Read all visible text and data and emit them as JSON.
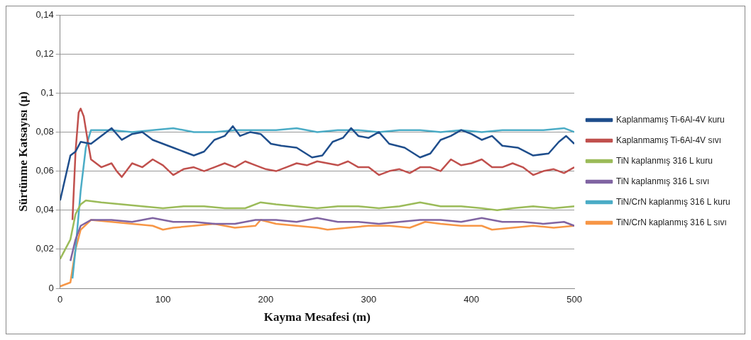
{
  "chart_data": {
    "type": "line",
    "xlabel": "Kayma Mesafesi (m)",
    "ylabel": "Sürtünme Katsayısı (µ)",
    "xlim": [
      0,
      500
    ],
    "xticks": [
      0,
      100,
      200,
      300,
      400,
      500
    ],
    "ylim": [
      0,
      0.14
    ],
    "yticks": [
      {
        "value": 0,
        "label": "0"
      },
      {
        "value": 0.02,
        "label": "0,02"
      },
      {
        "value": 0.04,
        "label": "0,04"
      },
      {
        "value": 0.06,
        "label": "0,06"
      },
      {
        "value": 0.08,
        "label": "0,08"
      },
      {
        "value": 0.1,
        "label": "0,1"
      },
      {
        "value": 0.12,
        "label": "0,12"
      },
      {
        "value": 0.14,
        "label": "0,14"
      }
    ],
    "grid": "y",
    "legend": "right",
    "marker": "none",
    "line_style": "solid",
    "series": [
      {
        "name": "Kaplanmamış Ti-6Al-4V kuru",
        "color": "#1f4e8c",
        "x": [
          0,
          10,
          15,
          20,
          30,
          40,
          50,
          60,
          70,
          80,
          90,
          100,
          110,
          120,
          130,
          140,
          150,
          160,
          168,
          175,
          185,
          195,
          205,
          215,
          230,
          245,
          255,
          265,
          275,
          283,
          290,
          300,
          310,
          320,
          335,
          350,
          360,
          370,
          380,
          390,
          400,
          410,
          420,
          430,
          445,
          460,
          475,
          485,
          492,
          500
        ],
        "values": [
          0.045,
          0.068,
          0.07,
          0.075,
          0.074,
          0.078,
          0.082,
          0.076,
          0.079,
          0.08,
          0.076,
          0.074,
          0.072,
          0.07,
          0.068,
          0.07,
          0.076,
          0.078,
          0.083,
          0.078,
          0.08,
          0.079,
          0.074,
          0.073,
          0.072,
          0.067,
          0.068,
          0.075,
          0.077,
          0.082,
          0.078,
          0.077,
          0.08,
          0.074,
          0.072,
          0.067,
          0.069,
          0.076,
          0.078,
          0.081,
          0.079,
          0.076,
          0.078,
          0.073,
          0.072,
          0.068,
          0.069,
          0.075,
          0.078,
          0.074
        ]
      },
      {
        "name": "Kaplanmamış Ti-6Al-4V sıvı",
        "color": "#c0504d",
        "x": [
          12,
          15,
          18,
          20,
          23,
          27,
          30,
          40,
          50,
          55,
          60,
          70,
          80,
          90,
          100,
          110,
          120,
          130,
          140,
          150,
          160,
          170,
          180,
          190,
          200,
          210,
          220,
          230,
          240,
          250,
          260,
          270,
          280,
          290,
          300,
          310,
          320,
          330,
          340,
          350,
          360,
          370,
          380,
          390,
          400,
          410,
          420,
          430,
          440,
          450,
          460,
          470,
          480,
          490,
          500
        ],
        "values": [
          0.035,
          0.07,
          0.09,
          0.092,
          0.088,
          0.075,
          0.066,
          0.062,
          0.064,
          0.06,
          0.057,
          0.064,
          0.062,
          0.066,
          0.063,
          0.058,
          0.061,
          0.062,
          0.06,
          0.062,
          0.064,
          0.062,
          0.065,
          0.063,
          0.061,
          0.06,
          0.062,
          0.064,
          0.063,
          0.065,
          0.064,
          0.063,
          0.065,
          0.062,
          0.062,
          0.058,
          0.06,
          0.061,
          0.059,
          0.062,
          0.062,
          0.06,
          0.066,
          0.063,
          0.064,
          0.066,
          0.062,
          0.062,
          0.064,
          0.062,
          0.058,
          0.06,
          0.061,
          0.059,
          0.062
        ]
      },
      {
        "name": "TiN kaplanmış 316 L kuru",
        "color": "#9bbb59",
        "x": [
          0,
          10,
          15,
          20,
          25,
          40,
          60,
          80,
          100,
          120,
          140,
          160,
          180,
          195,
          210,
          230,
          250,
          270,
          290,
          310,
          330,
          350,
          370,
          390,
          410,
          425,
          440,
          460,
          480,
          500
        ],
        "values": [
          0.015,
          0.025,
          0.038,
          0.043,
          0.045,
          0.044,
          0.043,
          0.042,
          0.041,
          0.042,
          0.042,
          0.041,
          0.041,
          0.044,
          0.043,
          0.042,
          0.041,
          0.042,
          0.042,
          0.041,
          0.042,
          0.044,
          0.042,
          0.042,
          0.041,
          0.04,
          0.041,
          0.042,
          0.041,
          0.042
        ]
      },
      {
        "name": "TiN kaplanmış 316 L sıvı",
        "color": "#8064a2",
        "x": [
          10,
          15,
          20,
          30,
          50,
          70,
          90,
          110,
          130,
          150,
          170,
          190,
          210,
          230,
          250,
          270,
          290,
          310,
          330,
          350,
          370,
          390,
          410,
          430,
          450,
          470,
          490,
          500
        ],
        "values": [
          0.014,
          0.025,
          0.032,
          0.035,
          0.035,
          0.034,
          0.036,
          0.034,
          0.034,
          0.033,
          0.033,
          0.035,
          0.035,
          0.034,
          0.036,
          0.034,
          0.034,
          0.033,
          0.034,
          0.035,
          0.035,
          0.034,
          0.036,
          0.034,
          0.034,
          0.033,
          0.034,
          0.032
        ]
      },
      {
        "name": "TiN/CrN kaplanmış 316 L kuru",
        "color": "#4bacc6",
        "x": [
          12,
          15,
          20,
          25,
          30,
          50,
          70,
          90,
          110,
          130,
          150,
          170,
          190,
          210,
          230,
          250,
          270,
          290,
          310,
          330,
          350,
          370,
          390,
          410,
          430,
          450,
          470,
          490,
          500
        ],
        "values": [
          0.005,
          0.02,
          0.05,
          0.072,
          0.081,
          0.081,
          0.08,
          0.081,
          0.082,
          0.08,
          0.08,
          0.081,
          0.081,
          0.081,
          0.082,
          0.08,
          0.081,
          0.081,
          0.08,
          0.081,
          0.081,
          0.08,
          0.081,
          0.08,
          0.081,
          0.081,
          0.081,
          0.082,
          0.08
        ]
      },
      {
        "name": "TiN/CrN kaplanmış 316 L sıvı",
        "color": "#f79646",
        "x": [
          0,
          10,
          15,
          20,
          30,
          50,
          70,
          90,
          100,
          110,
          130,
          150,
          170,
          190,
          195,
          210,
          230,
          250,
          260,
          280,
          300,
          320,
          340,
          355,
          370,
          390,
          410,
          420,
          440,
          460,
          480,
          500
        ],
        "values": [
          0.001,
          0.003,
          0.02,
          0.03,
          0.035,
          0.034,
          0.033,
          0.032,
          0.03,
          0.031,
          0.032,
          0.033,
          0.031,
          0.032,
          0.035,
          0.033,
          0.032,
          0.031,
          0.03,
          0.031,
          0.032,
          0.032,
          0.031,
          0.034,
          0.033,
          0.032,
          0.032,
          0.03,
          0.031,
          0.032,
          0.031,
          0.032
        ]
      }
    ]
  }
}
